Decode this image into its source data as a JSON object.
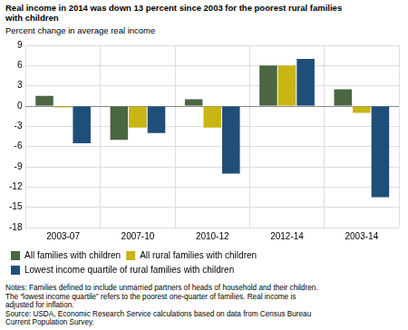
{
  "chart_data": {
    "type": "bar",
    "title": [
      "Real income in 2014 was down 13 percent since 2003 for the poorest rural families",
      "with children"
    ],
    "ylabel": "Percent change in average real income",
    "categories": [
      "2003-07",
      "2007-10",
      "2010-12",
      "2012-14",
      "2003-14"
    ],
    "series": [
      {
        "name": "All families with children",
        "color": "#4a6741",
        "values": [
          1.5,
          -5.0,
          1.0,
          6.0,
          2.5
        ]
      },
      {
        "name": "All rural families with children",
        "color": "#c9b514",
        "values": [
          -0.2,
          -3.2,
          -3.2,
          6.0,
          -1.0
        ]
      },
      {
        "name": "Lowest income quartile of rural families with children",
        "color": "#1f4e79",
        "values": [
          -5.5,
          -4.0,
          -10.0,
          7.0,
          -13.5
        ]
      }
    ],
    "ylim": [
      -18,
      9
    ],
    "yticks": [
      -18,
      -15,
      -12,
      -9,
      -6,
      -3,
      0,
      3,
      6,
      9
    ],
    "grid": true,
    "legend": "bottom",
    "annotations": [
      "Notes: Families defined to include unmarried partners of heads of household and their children.",
      "The “lowest income quartile” refers to the poorest one-quarter of families. Real income is",
      "adjusted for inflation.",
      "Source: USDA, Economic Research Service calculations based on data from Census Bureau",
      "Current Population Survey."
    ]
  }
}
